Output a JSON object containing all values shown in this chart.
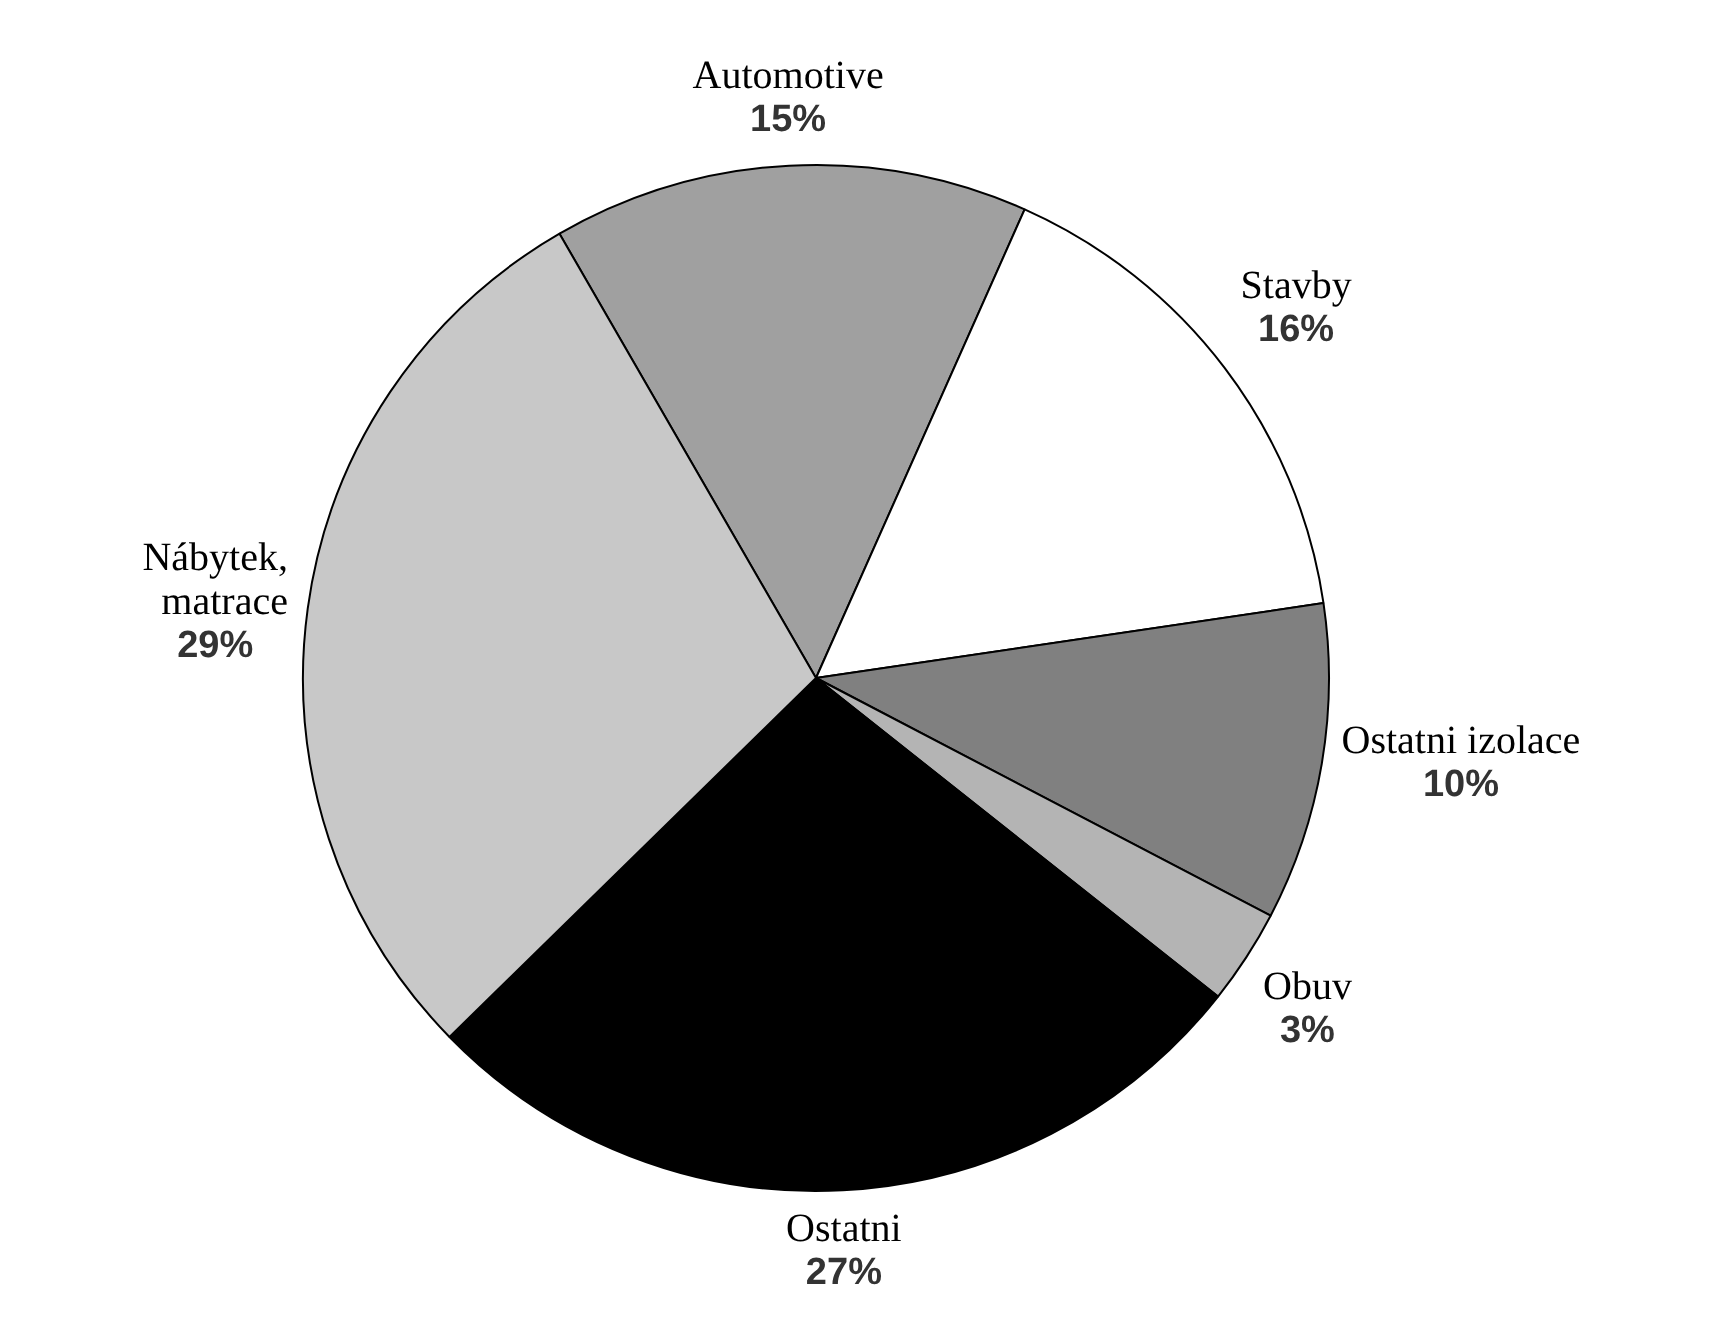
{
  "chart_data": {
    "type": "pie",
    "categories": [
      "Automotive",
      "Stavby",
      "Ostatni izolace",
      "Obuv",
      "Ostatni",
      "Nábytek, matrace"
    ],
    "values": [
      15,
      16,
      10,
      3,
      27,
      29
    ],
    "value_labels": [
      "15%",
      "16%",
      "10%",
      "3%",
      "27%",
      "29%"
    ],
    "colors": [
      "#a0a0a0",
      "#ffffff",
      "#808080",
      "#b4b4b4",
      "#000000",
      "#c8c8c8"
    ]
  }
}
